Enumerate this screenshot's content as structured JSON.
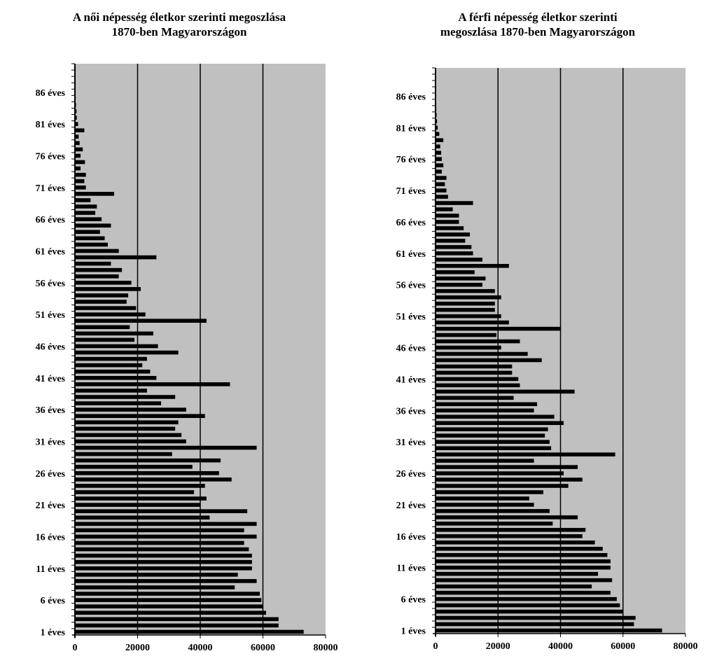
{
  "chart_data": [
    {
      "type": "bar",
      "orientation": "horizontal",
      "title": "A  női népesség életkor szerinti megoszlása\n1870-ben Magyarországon",
      "xlabel": "",
      "ylabel": "",
      "xlim": [
        0,
        80000
      ],
      "x_ticks": [
        "0",
        "20000",
        "40000",
        "60000",
        "80000"
      ],
      "y_tick_labels": [
        "1 éves",
        "6 éves",
        "11 éves",
        "16 éves",
        "21 éves",
        "26 éves",
        "31 éves",
        "36 éves",
        "41 éves",
        "46 éves",
        "51 éves",
        "56 éves",
        "61 éves",
        "66 éves",
        "71 éves",
        "76 éves",
        "81 éves",
        "86 éves"
      ],
      "grid": "vertical",
      "plot_background": "#c0c0c0",
      "bar_color": "#000000",
      "ages": [
        1,
        2,
        3,
        4,
        5,
        6,
        7,
        8,
        9,
        10,
        11,
        12,
        13,
        14,
        15,
        16,
        17,
        18,
        19,
        20,
        21,
        22,
        23,
        24,
        25,
        26,
        27,
        28,
        29,
        30,
        31,
        32,
        33,
        34,
        35,
        36,
        37,
        38,
        39,
        40,
        41,
        42,
        43,
        44,
        45,
        46,
        47,
        48,
        49,
        50,
        51,
        52,
        53,
        54,
        55,
        56,
        57,
        58,
        59,
        60,
        61,
        62,
        63,
        64,
        65,
        66,
        67,
        68,
        69,
        70,
        71,
        72,
        73,
        74,
        75,
        76,
        77,
        78,
        79,
        80,
        81,
        82,
        83,
        84,
        85,
        86,
        87,
        88,
        89,
        90
      ],
      "values": [
        73000,
        65000,
        65000,
        61000,
        60000,
        59500,
        59000,
        51000,
        58000,
        52000,
        56500,
        56500,
        56500,
        55500,
        54000,
        58000,
        54000,
        58000,
        43000,
        55000,
        40000,
        42000,
        38000,
        41500,
        50000,
        46000,
        37500,
        46500,
        31000,
        58000,
        35500,
        34000,
        32000,
        33000,
        41500,
        35500,
        27500,
        32000,
        23000,
        49500,
        26000,
        24000,
        21500,
        23000,
        33000,
        26500,
        19000,
        25000,
        17500,
        42000,
        22500,
        19500,
        16500,
        17000,
        21000,
        18000,
        14000,
        15000,
        11500,
        26000,
        14000,
        10500,
        9500,
        8000,
        11500,
        8500,
        6500,
        7000,
        5000,
        12500,
        3500,
        3000,
        3500,
        1800,
        3200,
        1800,
        2500,
        1500,
        1200,
        3000,
        1000,
        600,
        500,
        350,
        250,
        200,
        150,
        120,
        90,
        60
      ]
    },
    {
      "type": "bar",
      "orientation": "horizontal",
      "title": "A férfi népesség életkor szerinti\nmegoszlása 1870-ben Magyarországon",
      "xlabel": "",
      "ylabel": "",
      "xlim": [
        0,
        80000
      ],
      "x_ticks": [
        "0",
        "20000",
        "40000",
        "60000",
        "80000"
      ],
      "y_tick_labels": [
        "1 éves",
        "6 éves",
        "11 éves",
        "16 éves",
        "21 éves",
        "26 éves",
        "31 éves",
        "36 éves",
        "41 éves",
        "46 éves",
        "51 éves",
        "56 éves",
        "61 éves",
        "66 éves",
        "71 éves",
        "76 éves",
        "81 éves",
        "86 éves"
      ],
      "grid": "vertical",
      "plot_background": "#c0c0c0",
      "bar_color": "#000000",
      "ages": [
        1,
        2,
        3,
        4,
        5,
        6,
        7,
        8,
        9,
        10,
        11,
        12,
        13,
        14,
        15,
        16,
        17,
        18,
        19,
        20,
        21,
        22,
        23,
        24,
        25,
        26,
        27,
        28,
        29,
        30,
        31,
        32,
        33,
        34,
        35,
        36,
        37,
        38,
        39,
        40,
        41,
        42,
        43,
        44,
        45,
        46,
        47,
        48,
        49,
        50,
        51,
        52,
        53,
        54,
        55,
        56,
        57,
        58,
        59,
        60,
        61,
        62,
        63,
        64,
        65,
        66,
        67,
        68,
        69,
        70,
        71,
        72,
        73,
        74,
        75,
        76,
        77,
        78,
        79,
        80,
        81,
        82,
        83,
        84,
        85,
        86,
        87,
        88,
        89,
        90
      ],
      "values": [
        72500,
        63500,
        64000,
        60000,
        59000,
        58000,
        56000,
        50000,
        56500,
        52000,
        56000,
        56000,
        55000,
        53500,
        51000,
        47000,
        48000,
        37500,
        45500,
        36500,
        31500,
        30000,
        34500,
        42500,
        47000,
        41000,
        45500,
        31500,
        57500,
        37000,
        36500,
        35000,
        36000,
        41000,
        38000,
        31500,
        32500,
        25000,
        44500,
        27000,
        26500,
        24500,
        24500,
        34000,
        29500,
        21000,
        27000,
        19500,
        40000,
        23500,
        21000,
        19000,
        19000,
        21000,
        19000,
        15000,
        16000,
        12500,
        23500,
        15000,
        12000,
        11500,
        9500,
        11000,
        9000,
        7500,
        7500,
        5500,
        12000,
        4000,
        3500,
        3000,
        3500,
        2000,
        2500,
        2000,
        1800,
        1500,
        2500,
        1200,
        700,
        500,
        350,
        250,
        200,
        150,
        120,
        90,
        60,
        40
      ]
    }
  ]
}
